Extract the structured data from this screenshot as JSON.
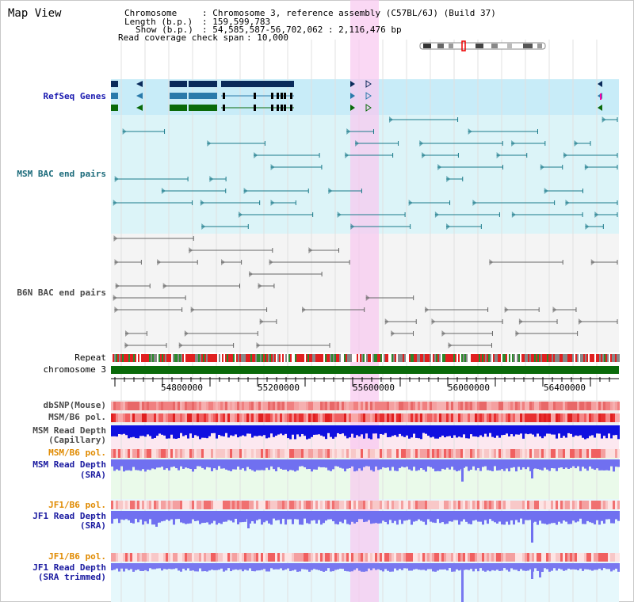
{
  "page": {
    "title": "Map View"
  },
  "info": {
    "chromosome_label": "Chromosome",
    "chromosome_value": ": Chromosome 3, reference assembly (C57BL/6J) (Build 37)",
    "length_label": "Length (b.p.)",
    "length_value": ": 159,599,783",
    "show_label": "Show (b.p.)",
    "show_value": ": 54,585,587-56,702,062 : 2,116,476 bp",
    "coverage_label": "Read coverage check span",
    "coverage_value": ": 10,000"
  },
  "tracks": {
    "refseq": "RefSeq Genes",
    "msm_bac": "MSM BAC end pairs",
    "b6n_bac": "B6N BAC end pairs",
    "repeat": "Repeat",
    "chromosome": "chromosome 3",
    "dbsnp": "dbSNP(Mouse)",
    "msm_b6_pol_1": "MSM/B6 pol.",
    "msm_read_depth_cap_1": "MSM Read Depth",
    "msm_read_depth_cap_2": "(Capillary)",
    "msm_b6_pol_2": "MSM/B6 pol.",
    "msm_read_depth_sra_1": "MSM Read Depth",
    "msm_read_depth_sra_2": "(SRA)",
    "jf1_b6_pol_1": "JF1/B6 pol.",
    "jf1_read_depth_sra_1": "JF1 Read Depth",
    "jf1_read_depth_sra_2": "(SRA)",
    "jf1_b6_pol_2": "JF1/B6 pol.",
    "jf1_read_depth_trim_1": "JF1 Read Depth",
    "jf1_read_depth_trim_2": "(SRA trimmed)"
  },
  "axis": {
    "ticks": [
      "54800000",
      "55200000",
      "55600000",
      "56000000",
      "56400000"
    ]
  },
  "colors": {
    "track_bg_blue": "#dcf4f8",
    "refseq_bg": "#c8ecf8",
    "highlight": "#f8d0f0",
    "msm_label": "#1a6a7a",
    "b6n_label": "#4a4a4a",
    "sra_label": "#1a1aa0",
    "jf1_pol_label": "#e08a00",
    "chromosome_bar": "#0a6a0a"
  }
}
